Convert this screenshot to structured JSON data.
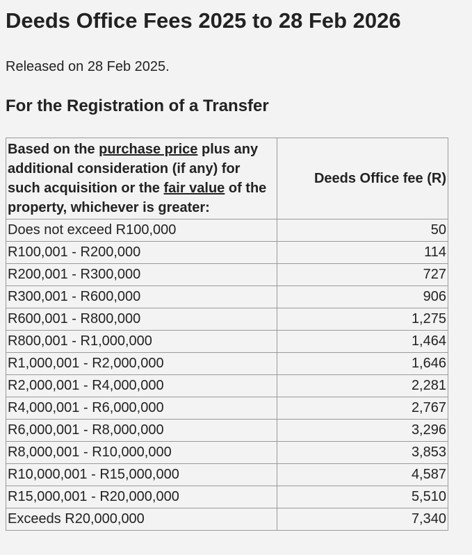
{
  "header": {
    "title": "Deeds Office Fees 2025 to 28 Feb 2026",
    "released": "Released on 28 Feb 2025.",
    "subtitle": "For the Registration of a Transfer"
  },
  "table": {
    "columns": [
      [
        "Based on the ",
        "purchase price",
        " plus any additional consideration (if any) for such acquisition or the ",
        "fair value",
        " of the property, whichever is greater:"
      ],
      "Deeds Office fee (R)"
    ],
    "rows": [
      [
        "Does not exceed R100,000",
        "50"
      ],
      [
        "R100,001 - R200,000",
        "114"
      ],
      [
        "R200,001 - R300,000",
        "727"
      ],
      [
        "R300,001 - R600,000",
        "906"
      ],
      [
        "R600,001 - R800,000",
        "1,275"
      ],
      [
        "R800,001 - R1,000,000",
        "1,464"
      ],
      [
        "R1,000,001 - R2,000,000",
        "1,646"
      ],
      [
        "R2,000,001 - R4,000,000",
        "2,281"
      ],
      [
        "R4,000,001 - R6,000,000",
        "2,767"
      ],
      [
        "R6,000,001 - R8,000,000",
        "3,296"
      ],
      [
        "R8,000,001 - R10,000,000",
        "3,853"
      ],
      [
        "R10,000,001 - R15,000,000",
        "4,587"
      ],
      [
        "R15,000,001 - R20,000,000",
        "5,510"
      ],
      [
        "Exceeds R20,000,000",
        "7,340"
      ]
    ]
  }
}
